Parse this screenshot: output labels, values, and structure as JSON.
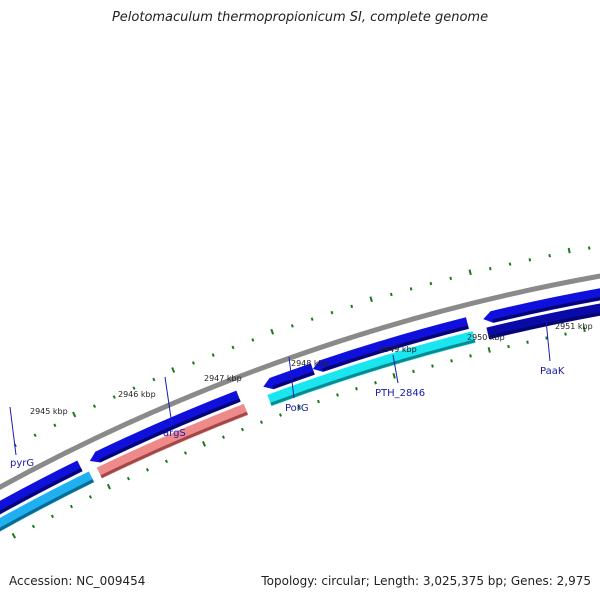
{
  "title": "Pelotomaculum thermopropionicum SI, complete genome",
  "footer": {
    "accession": "Accession: NC_009454",
    "stats": "Topology: circular; Length: 3,025,375 bp; Genes: 2,975"
  },
  "colors": {
    "backbone": "#8a8a8a",
    "cds_forward": "#1010dd",
    "cds_reverse": "#0a0aa8",
    "cyan_feature": "#19e6ee",
    "skyblue_feature": "#1eb0f0",
    "pink_feature": "#ee8a8a",
    "ticks": "#1a7a1a",
    "label_line": "#1a1ab8"
  },
  "kbp_labels": [
    "2945 kbp",
    "2946 kbp",
    "2947 kbp",
    "2948 kbp",
    "2949 kbp",
    "2950 kbp",
    "2951 kbp"
  ],
  "gene_labels": [
    "pyrG",
    "argS",
    "PorG",
    "PTH_2846",
    "PaaK"
  ]
}
